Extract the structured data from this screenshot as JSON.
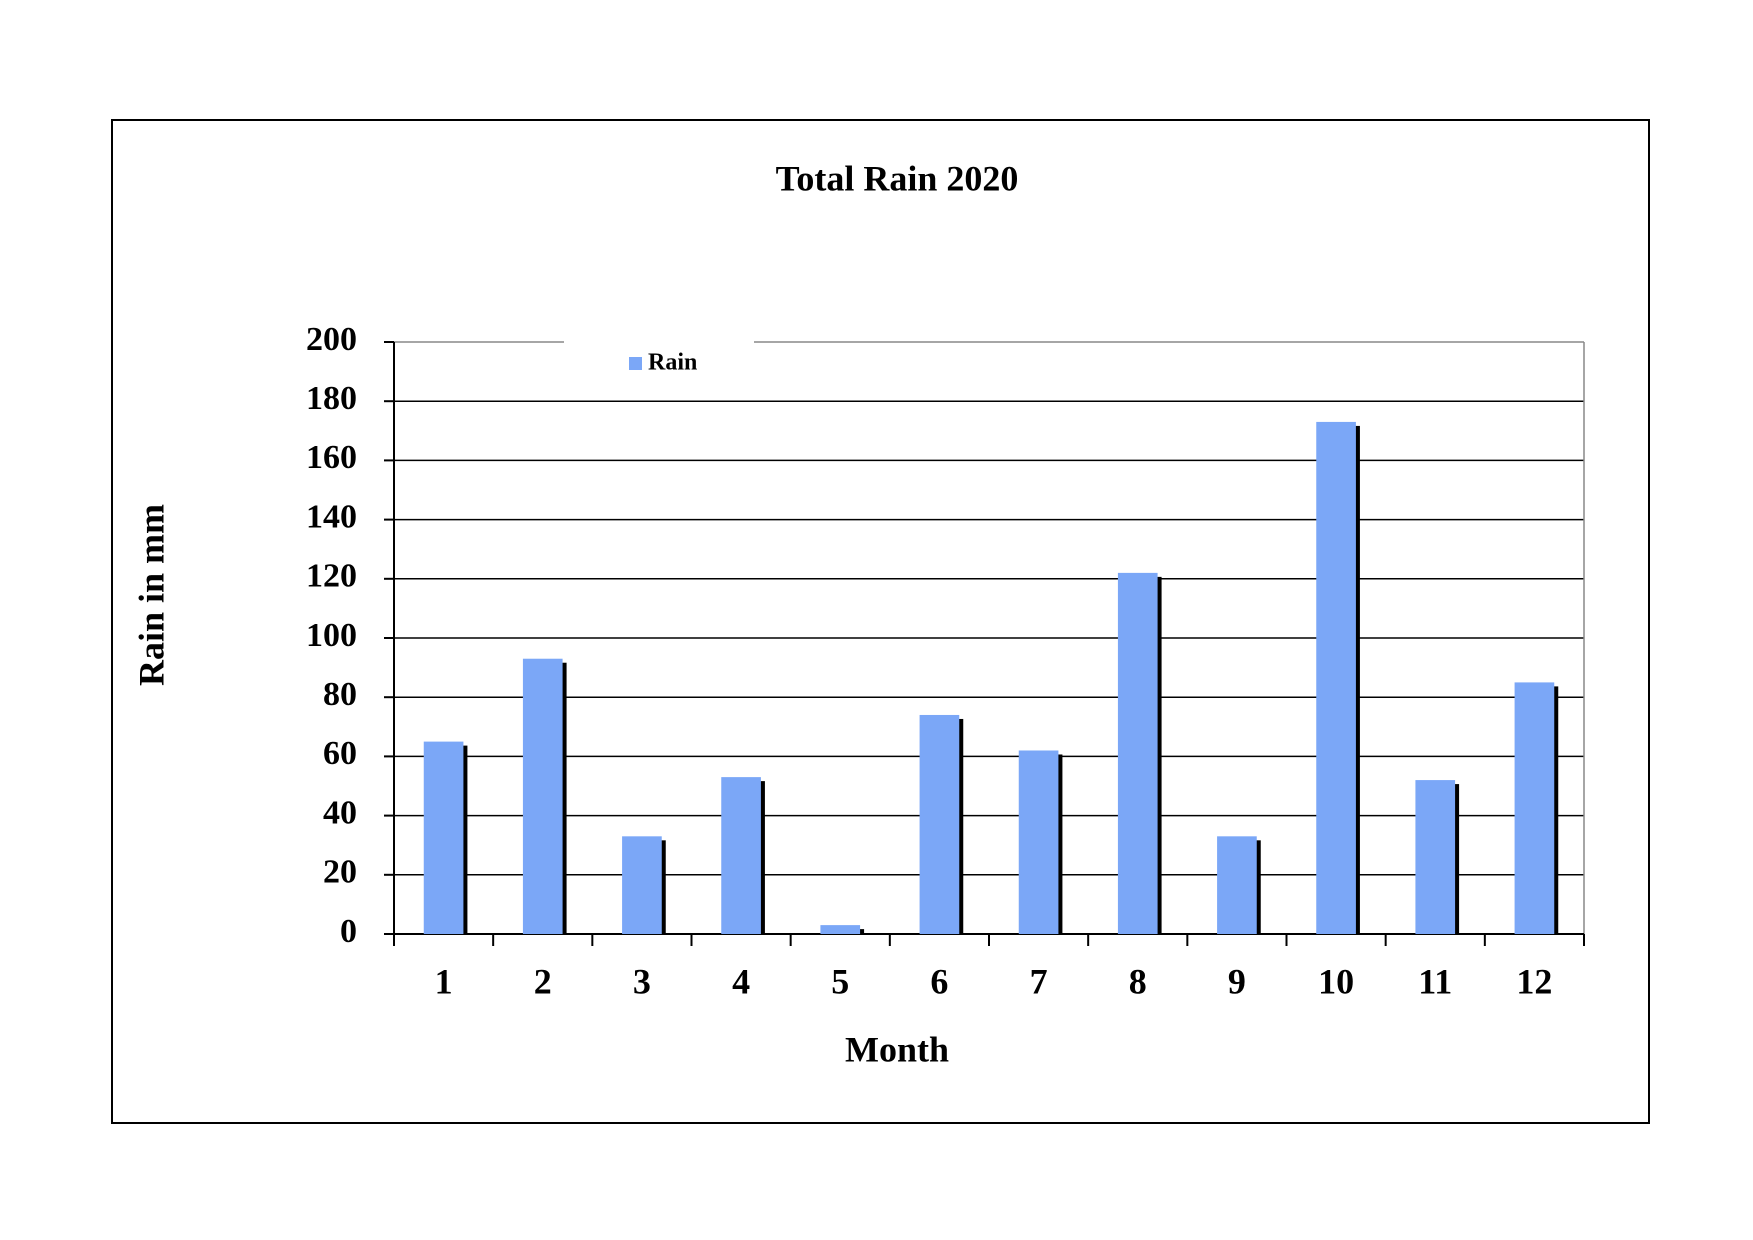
{
  "chart_data": {
    "type": "bar",
    "title": "Total Rain 2020",
    "x_label": "Month",
    "y_label": "Rain in mm",
    "categories": [
      "1",
      "2",
      "3",
      "4",
      "5",
      "6",
      "7",
      "8",
      "9",
      "10",
      "11",
      "12"
    ],
    "series": [
      {
        "name": "Rain",
        "color": "#7ba7f7",
        "values": [
          65,
          93,
          33,
          53,
          3,
          74,
          62,
          122,
          33,
          173,
          52,
          85
        ]
      }
    ],
    "ylim": [
      0,
      200
    ],
    "yticks": [
      0,
      20,
      40,
      60,
      80,
      100,
      120,
      140,
      160,
      180,
      200
    ],
    "grid": true,
    "legend": "top-left"
  }
}
